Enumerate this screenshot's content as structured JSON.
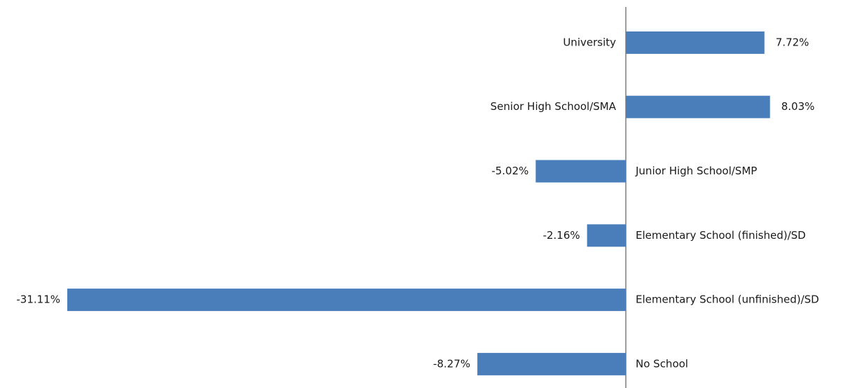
{
  "chart_data": {
    "type": "bar",
    "orientation": "horizontal",
    "categories": [
      "University",
      "Senior High School/SMA",
      "Junior High School/SMP",
      "Elementary School (finished)/SD",
      "Elementary School (unfinished)/SD",
      "No School"
    ],
    "values": [
      7.72,
      8.03,
      -5.02,
      -2.16,
      -31.11,
      -8.27
    ],
    "value_labels": [
      "7.72%",
      "8.03%",
      "-5.02%",
      "-2.16%",
      "-31.11%",
      "-8.27%"
    ],
    "color": "#4a7ebb"
  }
}
